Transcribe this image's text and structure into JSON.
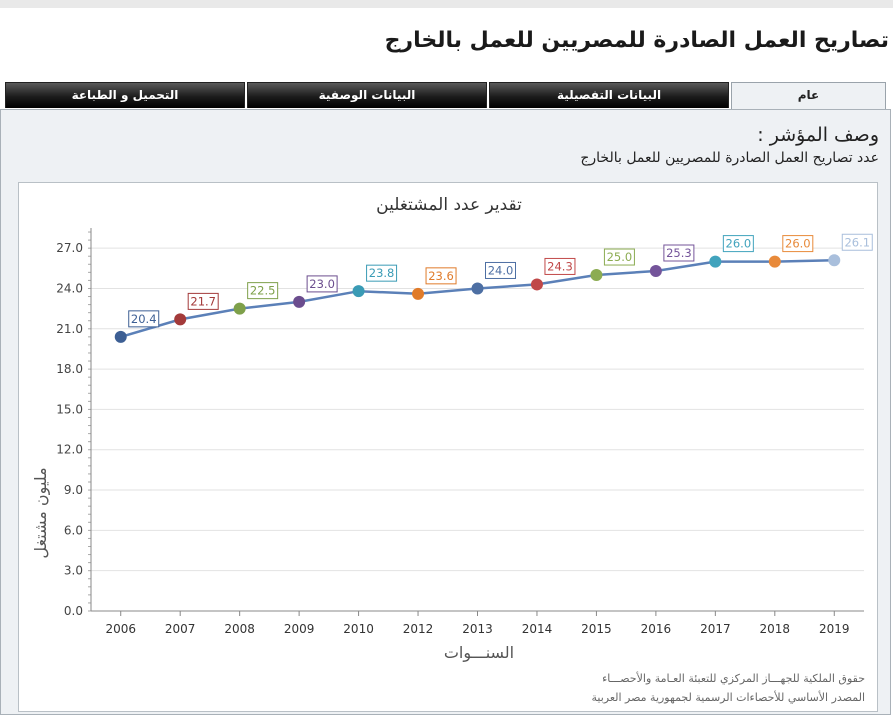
{
  "page_title": "تصاريح العمل الصادرة للمصريين للعمل بالخارج",
  "tabs": [
    {
      "label": "عام",
      "active": true
    },
    {
      "label": "البيانات التفصيلية",
      "active": false
    },
    {
      "label": "البيانات الوصفية",
      "active": false
    },
    {
      "label": "التحميل و الطباعة",
      "active": false
    }
  ],
  "indicator": {
    "label": "وصف المؤشر :",
    "description": "عدد تصاريح العمل الصادرة للمصريين للعمل بالخارج"
  },
  "footer": {
    "rights": "حقوق الملكية للجهـــاز المركزي للتعبئة العـامة والأحصـــاء",
    "source": "المصدر الأساسي للأحصاءات الرسمية لجمهورية مصر العربية"
  },
  "chart_data": {
    "type": "line",
    "title": "تقدير  عدد المشتغلين",
    "xlabel": "السنـــوات",
    "ylabel": "مليون  مشتغل",
    "x": [
      "2006",
      "2007",
      "2008",
      "2009",
      "2010",
      "2012",
      "2013",
      "2014",
      "2015",
      "2016",
      "2017",
      "2018",
      "2019"
    ],
    "values": [
      20.4,
      21.7,
      22.5,
      23.0,
      23.8,
      23.6,
      24.0,
      24.3,
      25.0,
      25.3,
      26.0,
      26.0,
      26.1
    ],
    "data_labels": [
      "20.4",
      "21.7",
      "22.5",
      "23.0",
      "23.8",
      "23.6",
      "24.0",
      "24.3",
      "25.0",
      "25.3",
      "26.0",
      "26.0",
      "26.1"
    ],
    "y_ticks": [
      "0.0",
      "3.0",
      "6.0",
      "9.0",
      "12.0",
      "15.0",
      "18.0",
      "21.0",
      "24.0",
      "27.0"
    ],
    "ylim": [
      0,
      28.5
    ],
    "point_colors": [
      "#3d5f94",
      "#a33a3a",
      "#7ea04a",
      "#6b4d8e",
      "#3a9bb5",
      "#e07b2a",
      "#4d6fa3",
      "#c04848",
      "#8cac52",
      "#74549a",
      "#41a3bd",
      "#e88a3a",
      "#a9bfdc"
    ],
    "line_color": "#5b80b8",
    "grid": true,
    "legend": "none"
  }
}
